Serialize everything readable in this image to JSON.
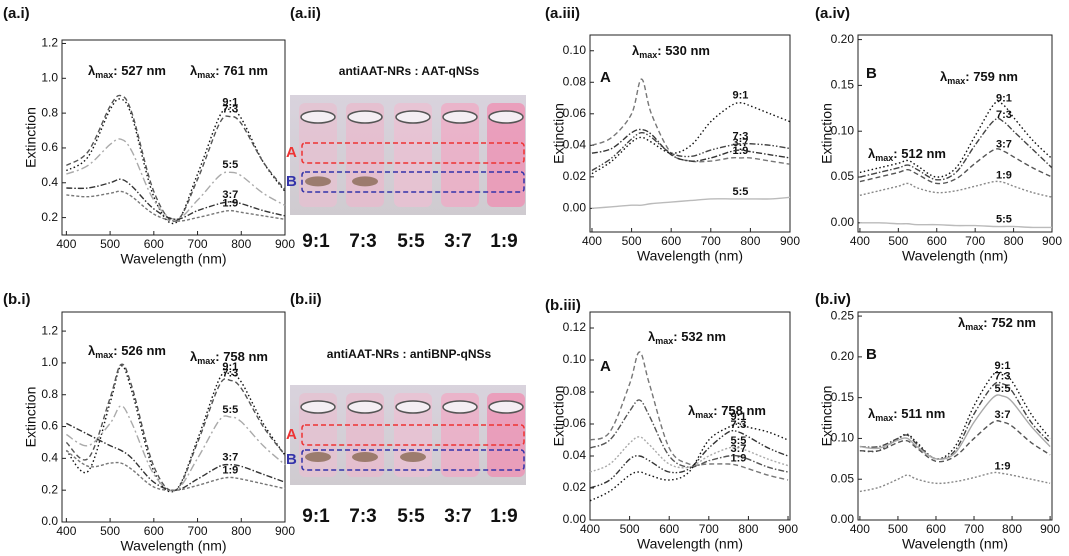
{
  "chart_data": [
    {
      "type": "line",
      "label": "(a.i)",
      "xlabel": "Wavelength (nm)",
      "ylabel": "Extinction",
      "xlim": [
        390,
        900
      ],
      "ylim": [
        0.1,
        1.22
      ],
      "xticks": [
        400,
        500,
        600,
        700,
        800,
        900
      ],
      "yticks": [
        0.2,
        0.4,
        0.6,
        0.8,
        {
          "value": 1,
          "label": "1.0"
        },
        1.2
      ],
      "annotations": [
        [
          "λ",
          "max",
          ":  527 nm"
        ],
        [
          "λ",
          "max",
          ":  761 nm"
        ]
      ],
      "x": [
        400,
        450,
        500,
        525,
        550,
        600,
        650,
        700,
        750,
        775,
        800,
        850,
        900
      ],
      "series": [
        {
          "name": "9:1",
          "color": "#111",
          "dash": "1.5 2.5",
          "values": [
            0.47,
            0.55,
            0.82,
            0.88,
            0.78,
            0.32,
            0.17,
            0.45,
            0.78,
            0.82,
            0.77,
            0.52,
            0.35
          ]
        },
        {
          "name": "7:3",
          "color": "#555",
          "dash": "5 3",
          "values": [
            0.5,
            0.58,
            0.84,
            0.9,
            0.8,
            0.35,
            0.18,
            0.42,
            0.74,
            0.78,
            0.74,
            0.52,
            0.36
          ]
        },
        {
          "name": "5:5",
          "color": "#aaa",
          "dash": "8 3 2 3",
          "values": [
            0.45,
            0.5,
            0.62,
            0.65,
            0.58,
            0.3,
            0.19,
            0.3,
            0.44,
            0.46,
            0.44,
            0.34,
            0.27
          ]
        },
        {
          "name": "3:7",
          "color": "#333",
          "dash": "6 2 1.5 2",
          "values": [
            0.37,
            0.37,
            0.4,
            0.42,
            0.38,
            0.25,
            0.19,
            0.24,
            0.28,
            0.29,
            0.28,
            0.24,
            0.21
          ]
        },
        {
          "name": "1:9",
          "color": "#777",
          "dash": "3 2",
          "values": [
            0.33,
            0.32,
            0.34,
            0.35,
            0.32,
            0.22,
            0.18,
            0.2,
            0.23,
            0.24,
            0.23,
            0.21,
            0.19
          ]
        }
      ]
    },
    {
      "type": "line",
      "label": "(a.iii)",
      "xlabel": "Wavelength (nm)",
      "ylabel": "Extinction",
      "xlim": [
        395,
        900
      ],
      "ylim": [
        -0.015,
        0.11
      ],
      "xticks": [
        400,
        500,
        600,
        700,
        800,
        900
      ],
      "yticks": [
        {
          "value": 0,
          "label": "0.00"
        },
        0.02,
        0.04,
        0.06,
        0.08,
        {
          "value": 0.1,
          "label": "0.10"
        }
      ],
      "annotations": [
        [
          "λ",
          "max",
          ":  530 nm"
        ],
        [
          "A"
        ]
      ],
      "x": [
        400,
        450,
        500,
        525,
        550,
        600,
        650,
        700,
        750,
        775,
        800,
        850,
        900
      ],
      "series": [
        {
          "name": "1:9",
          "color": "#777",
          "dash": "5 3",
          "values": [
            0.04,
            0.045,
            0.06,
            0.082,
            0.06,
            0.035,
            0.03,
            0.03,
            0.032,
            0.032,
            0.032,
            0.03,
            0.028
          ]
        },
        {
          "name": "3:7",
          "color": "#333",
          "dash": "6 2 1.5 2",
          "values": [
            0.035,
            0.038,
            0.048,
            0.05,
            0.047,
            0.034,
            0.03,
            0.032,
            0.036,
            0.037,
            0.036,
            0.034,
            0.032
          ]
        },
        {
          "name": "9:1",
          "color": "#111",
          "dash": "1.5 2.5",
          "values": [
            0.022,
            0.03,
            0.042,
            0.045,
            0.042,
            0.035,
            0.04,
            0.055,
            0.065,
            0.067,
            0.065,
            0.06,
            0.055
          ]
        },
        {
          "name": "7:3",
          "color": "#444",
          "dash": "6 2 1.5 2 1.5 2",
          "values": [
            0.024,
            0.032,
            0.044,
            0.048,
            0.045,
            0.035,
            0.033,
            0.037,
            0.04,
            0.041,
            0.041,
            0.04,
            0.038
          ]
        },
        {
          "name": "5:5",
          "color": "#bbb",
          "dash": "",
          "values": [
            0,
            0.001,
            0.002,
            0.002,
            0.003,
            0.004,
            0.005,
            0.006,
            0.006,
            0.006,
            0.006,
            0.006,
            0.007
          ]
        }
      ]
    },
    {
      "type": "line",
      "label": "(a.iv)",
      "xlabel": "Wavelength (nm)",
      "ylabel": "Extinction",
      "xlim": [
        395,
        900
      ],
      "ylim": [
        -0.01,
        0.205
      ],
      "xticks": [
        400,
        500,
        600,
        700,
        800,
        900
      ],
      "yticks": [
        {
          "value": 0,
          "label": "0.00"
        },
        0.05,
        {
          "value": 0.1,
          "label": "0.10"
        },
        0.15,
        {
          "value": 0.2,
          "label": "0.20"
        }
      ],
      "annotations": [
        [
          "B"
        ],
        [
          "λ",
          "max",
          ":  759 nm"
        ],
        [
          "λ",
          "max",
          ":  512 nm"
        ]
      ],
      "x": [
        400,
        450,
        500,
        525,
        550,
        600,
        650,
        700,
        750,
        775,
        800,
        850,
        900
      ],
      "series": [
        {
          "name": "9:1",
          "color": "#111",
          "dash": "1.5 2.5",
          "values": [
            0.055,
            0.06,
            0.065,
            0.068,
            0.062,
            0.05,
            0.06,
            0.095,
            0.13,
            0.128,
            0.115,
            0.09,
            0.07
          ]
        },
        {
          "name": "7:3",
          "color": "#444",
          "dash": "6 2 1.5 2",
          "values": [
            0.05,
            0.055,
            0.06,
            0.063,
            0.058,
            0.047,
            0.055,
            0.085,
            0.112,
            0.11,
            0.1,
            0.08,
            0.06
          ]
        },
        {
          "name": "3:7",
          "color": "#555",
          "dash": "5 3",
          "values": [
            0.045,
            0.05,
            0.055,
            0.058,
            0.053,
            0.043,
            0.048,
            0.065,
            0.08,
            0.078,
            0.072,
            0.06,
            0.05
          ]
        },
        {
          "name": "1:9",
          "color": "#888",
          "dash": "2 2",
          "values": [
            0.03,
            0.035,
            0.04,
            0.043,
            0.038,
            0.033,
            0.035,
            0.04,
            0.045,
            0.044,
            0.04,
            0.033,
            0.028
          ]
        },
        {
          "name": "5:5",
          "color": "#bbb",
          "dash": "",
          "values": [
            0,
            0,
            -0.001,
            -0.001,
            -0.002,
            -0.002,
            -0.003,
            -0.003,
            -0.004,
            -0.004,
            -0.004,
            -0.005,
            -0.005
          ]
        }
      ]
    },
    {
      "type": "line",
      "label": "(b.i)",
      "xlabel": "Wavelength (nm)",
      "ylabel": "Extinction",
      "xlim": [
        390,
        900
      ],
      "ylim": [
        0,
        1.32
      ],
      "xticks": [
        400,
        500,
        600,
        700,
        800,
        900
      ],
      "yticks": [
        {
          "value": 0,
          "label": "0.0"
        },
        0.2,
        0.4,
        0.6,
        0.8,
        {
          "value": 1,
          "label": "1.0"
        },
        1.2
      ],
      "annotations": [
        [
          "λ",
          "max",
          ":  526 nm"
        ],
        [
          "λ",
          "max",
          ":  758 nm"
        ]
      ],
      "x": [
        400,
        450,
        500,
        525,
        550,
        600,
        650,
        700,
        750,
        775,
        800,
        850,
        900
      ],
      "series": [
        {
          "name": "9:1",
          "color": "#111",
          "dash": "1.5 2.5",
          "values": [
            0.45,
            0.32,
            0.75,
            0.98,
            0.82,
            0.32,
            0.2,
            0.52,
            0.9,
            0.93,
            0.88,
            0.62,
            0.42
          ]
        },
        {
          "name": "7:3",
          "color": "#555",
          "dash": "5 3",
          "values": [
            0.5,
            0.4,
            0.78,
            0.99,
            0.85,
            0.35,
            0.2,
            0.5,
            0.86,
            0.89,
            0.84,
            0.6,
            0.42
          ]
        },
        {
          "name": "5:5",
          "color": "#aaa",
          "dash": "8 3 2 3",
          "values": [
            0.55,
            0.48,
            0.62,
            0.73,
            0.62,
            0.3,
            0.2,
            0.4,
            0.64,
            0.66,
            0.63,
            0.48,
            0.36
          ]
        },
        {
          "name": "3:7",
          "color": "#333",
          "dash": "6 2 1.5 2",
          "values": [
            0.62,
            0.55,
            0.48,
            0.45,
            0.4,
            0.25,
            0.2,
            0.27,
            0.35,
            0.36,
            0.35,
            0.3,
            0.25
          ]
        },
        {
          "name": "1:9",
          "color": "#777",
          "dash": "3 2",
          "values": [
            0.45,
            0.35,
            0.37,
            0.37,
            0.33,
            0.22,
            0.2,
            0.23,
            0.27,
            0.28,
            0.27,
            0.24,
            0.21
          ]
        }
      ]
    },
    {
      "type": "line",
      "label": "(b.iii)",
      "xlabel": "Wavelength (nm)",
      "ylabel": "Extinction",
      "xlim": [
        400,
        905
      ],
      "ylim": [
        0,
        0.13
      ],
      "xticks": [
        400,
        500,
        600,
        700,
        800,
        900
      ],
      "yticks": [
        {
          "value": 0,
          "label": "0.00"
        },
        0.02,
        0.04,
        0.06,
        0.08,
        {
          "value": 0.1,
          "label": "0.10"
        },
        0.12
      ],
      "annotations": [
        [
          "λ",
          "max",
          ":  532 nm"
        ],
        [
          "A"
        ],
        [
          "λ",
          "max",
          ":  758 nm"
        ]
      ],
      "x": [
        400,
        450,
        500,
        525,
        550,
        600,
        650,
        700,
        750,
        775,
        800,
        850,
        900
      ],
      "series": [
        {
          "name": "1:9",
          "color": "#777",
          "dash": "5 3",
          "values": [
            0.05,
            0.055,
            0.085,
            0.105,
            0.085,
            0.045,
            0.035,
            0.035,
            0.035,
            0.034,
            0.032,
            0.028,
            0.025
          ]
        },
        {
          "name": "3:7",
          "color": "#555",
          "dash": "6 2 1.5 2",
          "values": [
            0.045,
            0.05,
            0.068,
            0.075,
            0.065,
            0.04,
            0.033,
            0.037,
            0.04,
            0.04,
            0.038,
            0.033,
            0.03
          ]
        },
        {
          "name": "5:5",
          "color": "#aaa",
          "dash": "2 2",
          "values": [
            0.03,
            0.035,
            0.048,
            0.052,
            0.047,
            0.035,
            0.033,
            0.04,
            0.045,
            0.045,
            0.043,
            0.038,
            0.034
          ]
        },
        {
          "name": "7:3",
          "color": "#333",
          "dash": "6 2 1.5 2 1.5 2",
          "values": [
            0.02,
            0.025,
            0.038,
            0.04,
            0.037,
            0.03,
            0.032,
            0.045,
            0.055,
            0.055,
            0.052,
            0.045,
            0.04
          ]
        },
        {
          "name": "9:1",
          "color": "#111",
          "dash": "1.5 2.5",
          "values": [
            0.012,
            0.018,
            0.028,
            0.03,
            0.028,
            0.025,
            0.03,
            0.05,
            0.058,
            0.06,
            0.058,
            0.055,
            0.05
          ]
        }
      ]
    },
    {
      "type": "line",
      "label": "(b.iv)",
      "xlabel": "Wavelength (nm)",
      "ylabel": "Extinction",
      "xlim": [
        395,
        905
      ],
      "ylim": [
        0,
        0.255
      ],
      "xticks": [
        400,
        500,
        600,
        700,
        800,
        900
      ],
      "yticks": [
        {
          "value": 0,
          "label": "0.00"
        },
        0.05,
        {
          "value": 0.1,
          "label": "0.10"
        },
        0.15,
        {
          "value": 0.2,
          "label": "0.20"
        },
        0.25
      ],
      "annotations": [
        [
          "B"
        ],
        [
          "λ",
          "max",
          ":  752 nm"
        ],
        [
          "λ",
          "max",
          ":  511 nm"
        ]
      ],
      "x": [
        400,
        450,
        500,
        525,
        550,
        600,
        650,
        700,
        750,
        775,
        800,
        850,
        900
      ],
      "series": [
        {
          "name": "9:1",
          "color": "#111",
          "dash": "1.5 2.5",
          "values": [
            0.085,
            0.085,
            0.1,
            0.105,
            0.095,
            0.075,
            0.09,
            0.14,
            0.178,
            0.18,
            0.17,
            0.13,
            0.1
          ]
        },
        {
          "name": "7:3",
          "color": "#444",
          "dash": "6 2 1.5 2",
          "values": [
            0.09,
            0.09,
            0.1,
            0.104,
            0.093,
            0.075,
            0.085,
            0.13,
            0.165,
            0.167,
            0.158,
            0.12,
            0.095
          ]
        },
        {
          "name": "5:5",
          "color": "#aaa",
          "dash": "",
          "values": [
            0.09,
            0.088,
            0.098,
            0.1,
            0.09,
            0.075,
            0.082,
            0.12,
            0.15,
            0.152,
            0.145,
            0.115,
            0.09
          ]
        },
        {
          "name": "3:7",
          "color": "#555",
          "dash": "5 3",
          "values": [
            0.085,
            0.085,
            0.095,
            0.097,
            0.088,
            0.072,
            0.078,
            0.1,
            0.12,
            0.12,
            0.115,
            0.095,
            0.08
          ]
        },
        {
          "name": "1:9",
          "color": "#888",
          "dash": "2 2",
          "values": [
            0.035,
            0.04,
            0.05,
            0.055,
            0.05,
            0.045,
            0.047,
            0.052,
            0.058,
            0.057,
            0.055,
            0.05,
            0.045
          ]
        }
      ]
    }
  ],
  "photos": [
    {
      "label": "(a.ii)",
      "caption": "antiAAT-NRs : AAT-qNSs",
      "row_labels": [
        "A",
        "B"
      ],
      "ratios": [
        "9:1",
        "7:3",
        "5:5",
        "3:7",
        "1:9"
      ]
    },
    {
      "label": "(b.ii)",
      "caption": "antiAAT-NRs : antiBNP-qNSs",
      "row_labels": [
        "A",
        "B"
      ],
      "ratios": [
        "9:1",
        "7:3",
        "5:5",
        "3:7",
        "1:9"
      ]
    }
  ]
}
